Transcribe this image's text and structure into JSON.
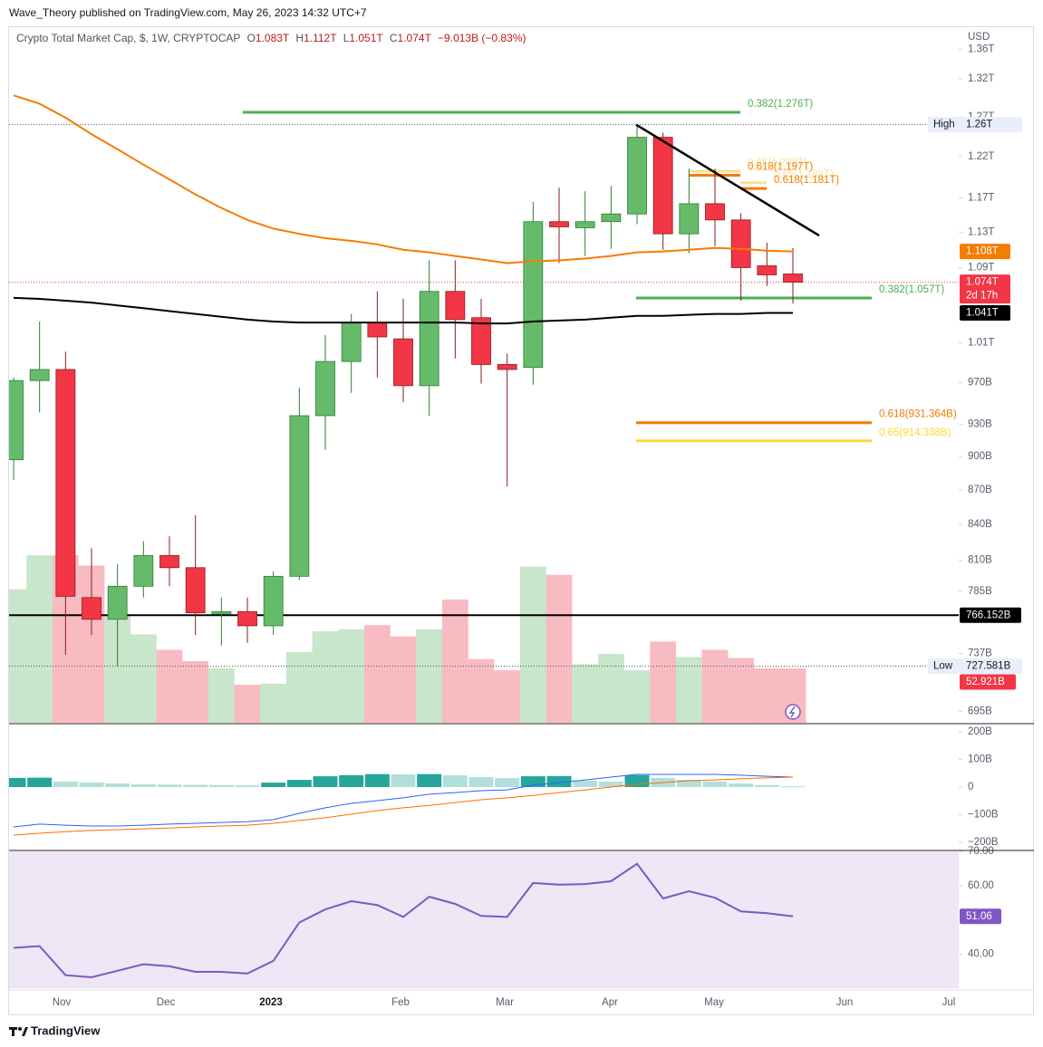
{
  "header": {
    "publisher": "Wave_Theory published on TradingView.com, May 26, 2023 14:32 UTC+7"
  },
  "legend": {
    "symbol": "Crypto Total Market Cap, $, 1W, CRYPTOCAP",
    "open_label": "O",
    "open": "1.083T",
    "high_label": "H",
    "high": "1.112T",
    "low_label": "L",
    "low": "1.051T",
    "close_label": "C",
    "close": "1.074T",
    "change": "−9.013B (−0.83%)"
  },
  "footer": {
    "logo": "TradingView"
  },
  "chart_data": [
    {
      "type": "candlestick",
      "currency_label": "USD",
      "log_scale": true,
      "x_labels": [
        "Nov",
        "Dec",
        "2023",
        "Feb",
        "Mar",
        "Apr",
        "May",
        "Jun",
        "Jul"
      ],
      "open": [
        897000000000.0,
        972000000000.0,
        983000000000.0,
        780000000000.0,
        763000000000.0,
        789000000000.0,
        814000000000.0,
        804000000000.0,
        767000000000.0,
        769000000000.0,
        758000000000.0,
        797000000000.0,
        938000000000.0,
        991000000000.0,
        1031000000000.0,
        1014000000000.0,
        967000000000.0,
        1064000000000.0,
        1036000000000.0,
        988000000000.0,
        985000000000.0,
        1142000000000.0,
        1135000000000.0,
        1142000000000.0,
        1151000000000.0,
        1244000000000.0,
        1128000000000.0,
        1163000000000.0,
        1144000000000.0,
        1092000000000.0,
        1083000000000.0
      ],
      "high": [
        975000000000.0,
        1032000000000.0,
        1001000000000.0,
        820000000000.0,
        807000000000.0,
        826000000000.0,
        830000000000.0,
        848000000000.0,
        780000000000.0,
        780000000000.0,
        801000000000.0,
        965000000000.0,
        1018000000000.0,
        1040000000000.0,
        1064000000000.0,
        1056000000000.0,
        1098000000000.0,
        1098000000000.0,
        1056000000000.0,
        999000000000.0,
        1165000000000.0,
        1182000000000.0,
        1178000000000.0,
        1184000000000.0,
        1260000000000.0,
        1250000000000.0,
        1205000000000.0,
        1205000000000.0,
        1152000000000.0,
        1118000000000.0,
        1112000000000.0
      ],
      "low": [
        879000000000.0,
        941000000000.0,
        736000000000.0,
        751000000000.0,
        727581000000.0,
        780000000000.0,
        789000000000.0,
        751000000000.0,
        743000000000.0,
        745000000000.0,
        751000000000.0,
        794000000000.0,
        906000000000.0,
        960000000000.0,
        975000000000.0,
        951000000000.0,
        938000000000.0,
        994000000000.0,
        969000000000.0,
        873000000000.0,
        968000000000.0,
        1095000000000.0,
        1103000000000.0,
        1111000000000.0,
        1139000000000.0,
        1110000000000.0,
        1106000000000.0,
        1114000000000.0,
        1054000000000.0,
        1070000000000.0,
        1051000000000.0
      ],
      "close": [
        972000000000.0,
        983000000000.0,
        781000000000.0,
        763000000000.0,
        789000000000.0,
        814000000000.0,
        804000000000.0,
        768000000000.0,
        769000000000.0,
        758000000000.0,
        797000000000.0,
        938000000000.0,
        991000000000.0,
        1031000000000.0,
        1016000000000.0,
        967000000000.0,
        1064000000000.0,
        1034000000000.0,
        988000000000.0,
        983000000000.0,
        1142000000000.0,
        1136000000000.0,
        1142000000000.0,
        1151000000000.0,
        1244000000000.0,
        1128000000000.0,
        1163000000000.0,
        1144000000000.0,
        1090000000000.0,
        1082000000000.0,
        1074000000000.0
      ],
      "colors": {
        "up": "#66bb6a",
        "down": "#f23645",
        "up_volume": "#c8e6c9",
        "down_volume": "#f8bbc2"
      },
      "ylim": [
        687000000000.0,
        1391000000000.0
      ],
      "yticks": [
        {
          "value": 1360000000000.0,
          "label": "1.36T"
        },
        {
          "value": 1320000000000.0,
          "label": "1.32T"
        },
        {
          "value": 1270000000000.0,
          "label": "1.27T"
        },
        {
          "value": 1220000000000.0,
          "label": "1.22T"
        },
        {
          "value": 1170000000000.0,
          "label": "1.17T"
        },
        {
          "value": 1130000000000.0,
          "label": "1.13T"
        },
        {
          "value": 1090000000000.0,
          "label": "1.09T"
        },
        {
          "value": 1010000000000.0,
          "label": "1.01T"
        },
        {
          "value": 970000000000.0,
          "label": "970B"
        },
        {
          "value": 930000000000.0,
          "label": "930B"
        },
        {
          "value": 900000000000.0,
          "label": "900B"
        },
        {
          "value": 870000000000.0,
          "label": "870B"
        },
        {
          "value": 840000000000.0,
          "label": "840B"
        },
        {
          "value": 810000000000.0,
          "label": "810B"
        },
        {
          "value": 785000000000.0,
          "label": "785B"
        },
        {
          "value": 737000000000.0,
          "label": "737B"
        },
        {
          "value": 695000000000.0,
          "label": "695B"
        }
      ],
      "moving_averages": [
        {
          "color": "#f57c00",
          "last_label": "1.108T",
          "values": [
            1298000000000.0,
            1287000000000.0,
            1269000000000.0,
            1248000000000.0,
            1229000000000.0,
            1210000000000.0,
            1192000000000.0,
            1174000000000.0,
            1158000000000.0,
            1144000000000.0,
            1134000000000.0,
            1128000000000.0,
            1123000000000.0,
            1120000000000.0,
            1116000000000.0,
            1110000000000.0,
            1107000000000.0,
            1103000000000.0,
            1099000000000.0,
            1095000000000.0,
            1097000000000.0,
            1098000000000.0,
            1100000000000.0,
            1103000000000.0,
            1107000000000.0,
            1108000000000.0,
            1110000000000.0,
            1112000000000.0,
            1111000000000.0,
            1109000000000.0,
            1108000000000.0
          ]
        },
        {
          "color": "#000000",
          "last_label": "1.041T",
          "values": [
            1057000000000.0,
            1056000000000.0,
            1054000000000.0,
            1052000000000.0,
            1049000000000.0,
            1046000000000.0,
            1043000000000.0,
            1040000000000.0,
            1037000000000.0,
            1034000000000.0,
            1032000000000.0,
            1031000000000.0,
            1031000000000.0,
            1031000000000.0,
            1031000000000.0,
            1031000000000.0,
            1031000000000.0,
            1031000000000.0,
            1030000000000.0,
            1030000000000.0,
            1032000000000.0,
            1033000000000.0,
            1034000000000.0,
            1036000000000.0,
            1038000000000.0,
            1038000000000.0,
            1039000000000.0,
            1040000000000.0,
            1040000000000.0,
            1041000000000.0,
            1041000000000.0
          ]
        }
      ],
      "volume": {
        "values": [
          130000000000.0,
          163000000000.0,
          163000000000.0,
          153000000000.0,
          104000000000.0,
          86000000000.0,
          71000000000.0,
          60000000000.0,
          53000000000.0,
          37000000000.0,
          38000000000.0,
          69000000000.0,
          89000000000.0,
          91000000000.0,
          95000000000.0,
          84000000000.0,
          91000000000.0,
          120000000000.0,
          62000000000.0,
          51000000000.0,
          152000000000.0,
          144000000000.0,
          57000000000.0,
          67000000000.0,
          51000000000.0,
          79000000000.0,
          64000000000.0,
          71000000000.0,
          63000000000.0,
          53000000000.0,
          52921000000.0
        ],
        "ylim": [
          0,
          677000000000.0
        ],
        "last_label": "52.921B"
      },
      "high_marker": {
        "label": "High",
        "value": 1260000000000.0,
        "value_label": "1.26T"
      },
      "low_marker": {
        "label": "Low",
        "value": 727581000000.0,
        "value_label": "727.581B"
      },
      "last_price": {
        "value_label": "1.074T",
        "countdown": "2d 17h"
      },
      "horizontal_line": {
        "value": 766152000000.0,
        "value_label": "766.152B",
        "color": "#000000"
      },
      "trendline": {
        "start": 1260000000000.0,
        "end": 1126000000000.0,
        "color": "#000000"
      },
      "annotations": [
        {
          "label": "0.382(1.276T)",
          "value": 1276000000000.0,
          "color": "#4caf50"
        },
        {
          "label": "0.65(1.202T)",
          "value": 1202000000000.0,
          "color": "#fbc02d"
        },
        {
          "label": "0.618(1.197T)",
          "value": 1197000000000.0,
          "color": "#f57c00"
        },
        {
          "label": "0.65(1.188T)",
          "value": 1188000000000.0,
          "color": "#fbc02d"
        },
        {
          "label": "0.618(1.181T)",
          "value": 1181000000000.0,
          "color": "#f57c00"
        },
        {
          "label": "0.382(1.057T)",
          "value": 1057000000000.0,
          "color": "#4caf50"
        },
        {
          "label": "0.618(931.364B)",
          "value": 931364000000.0,
          "color": "#f57c00"
        },
        {
          "label": "0.65(914.338B)",
          "value": 914338000000.0,
          "color": "#fdd835"
        }
      ]
    },
    {
      "type": "macd",
      "ylim": [
        -226000000000.0,
        226000000000.0
      ],
      "yticks": [
        {
          "value": 200000000000.0,
          "label": "200B"
        },
        {
          "value": 100000000000.0,
          "label": "100B"
        },
        0,
        {
          "value": -100000000000.0,
          "label": "−100B"
        },
        {
          "value": -200000000000.0,
          "label": "−200B"
        }
      ],
      "histogram": [
        33000000000.0,
        34000000000.0,
        20000000000.0,
        16000000000.0,
        13000000000.0,
        10000000000.0,
        9000000000.0,
        8000000000.0,
        7000000000.0,
        6000000000.0,
        16000000000.0,
        26000000000.0,
        39000000000.0,
        43000000000.0,
        47000000000.0,
        46000000000.0,
        47000000000.0,
        43000000000.0,
        36000000000.0,
        33000000000.0,
        39000000000.0,
        40000000000.0,
        23000000000.0,
        20000000000.0,
        43000000000.0,
        33000000000.0,
        26000000000.0,
        20000000000.0,
        13000000000.0,
        7000000000.0,
        3000000000.0
      ],
      "macd": [
        -144000000000.0,
        -134000000000.0,
        -138000000000.0,
        -141000000000.0,
        -141000000000.0,
        -138000000000.0,
        -134000000000.0,
        -131000000000.0,
        -128000000000.0,
        -125000000000.0,
        -118000000000.0,
        -95000000000.0,
        -75000000000.0,
        -59000000000.0,
        -49000000000.0,
        -39000000000.0,
        -26000000000.0,
        -20000000000.0,
        -13000000000.0,
        -10000000000.0,
        7000000000.0,
        16000000000.0,
        26000000000.0,
        36000000000.0,
        46000000000.0,
        46000000000.0,
        46000000000.0,
        46000000000.0,
        43000000000.0,
        39000000000.0,
        36000000000.0
      ],
      "signal": [
        -174000000000.0,
        -167000000000.0,
        -161000000000.0,
        -157000000000.0,
        -154000000000.0,
        -151000000000.0,
        -148000000000.0,
        -144000000000.0,
        -141000000000.0,
        -138000000000.0,
        -131000000000.0,
        -121000000000.0,
        -111000000000.0,
        -98000000000.0,
        -85000000000.0,
        -75000000000.0,
        -66000000000.0,
        -56000000000.0,
        -46000000000.0,
        -39000000000.0,
        -30000000000.0,
        -20000000000.0,
        -10000000000.0,
        0,
        10000000000.0,
        16000000000.0,
        23000000000.0,
        26000000000.0,
        30000000000.0,
        33000000000.0,
        36000000000.0
      ],
      "colors": {
        "rising": "#26a69a",
        "falling": "#b2dfdb",
        "macd": "#2962ff",
        "signal": "#ff6d00"
      }
    },
    {
      "type": "rsi",
      "ylim": [
        29.87,
        70.03
      ],
      "yticks": [
        {
          "value": 70,
          "label": "70.00"
        },
        {
          "value": 60,
          "label": "60.00"
        },
        {
          "value": 40,
          "label": "40.00"
        }
      ],
      "band": [
        30,
        70
      ],
      "values": [
        41.9,
        42.4,
        33.9,
        33.3,
        35.2,
        37.1,
        36.5,
        34.9,
        34.9,
        34.4,
        38.1,
        49.3,
        53.1,
        55.5,
        54.4,
        50.9,
        56.8,
        54.7,
        51.2,
        50.9,
        60.8,
        60.3,
        60.5,
        61.3,
        66.4,
        56.3,
        58.4,
        56.5,
        52.5,
        52.0,
        51.06
      ],
      "last_label": "51.06",
      "color": "#7e57c2",
      "band_color": "#ede7f6"
    }
  ]
}
